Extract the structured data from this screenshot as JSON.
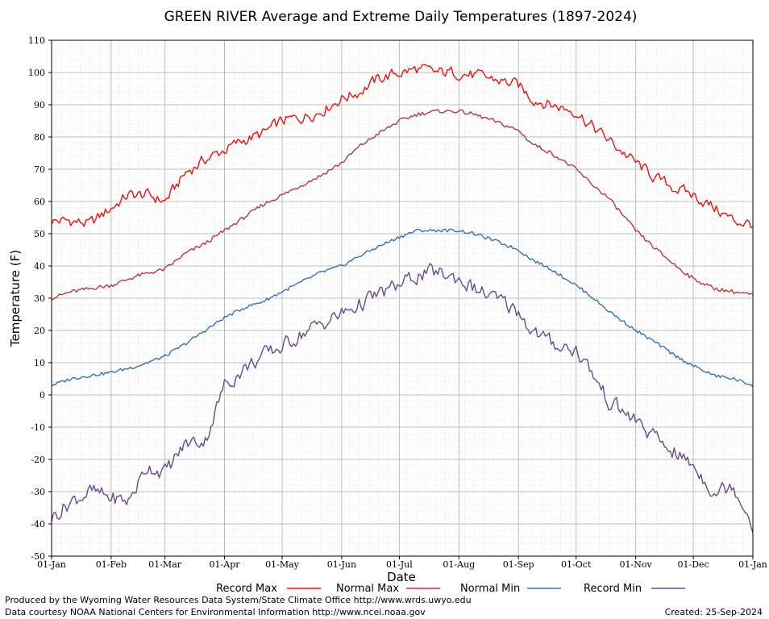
{
  "chart_data": {
    "type": "line",
    "title": "GREEN RIVER Average and Extreme Daily Temperatures (1897-2024)",
    "xlabel": "Date",
    "ylabel": "Temperature (F)",
    "ylim": [
      -50,
      110
    ],
    "yticks": [
      "-50",
      "-40",
      "-30",
      "-20",
      "-10",
      "0",
      "10",
      "20",
      "30",
      "40",
      "50",
      "60",
      "70",
      "80",
      "90",
      "100",
      "110"
    ],
    "xtick_labels": [
      "01-Jan",
      "01-Feb",
      "01-Mar",
      "01-Apr",
      "01-May",
      "01-Jun",
      "01-Jul",
      "01-Aug",
      "01-Sep",
      "01-Oct",
      "01-Nov",
      "01-Dec",
      "01-Jan"
    ],
    "xtick_days": [
      0,
      31,
      59,
      90,
      120,
      151,
      181,
      212,
      243,
      273,
      304,
      334,
      365
    ],
    "xlim": [
      0,
      365
    ],
    "grid": true,
    "legend_position": "bottom",
    "series": [
      {
        "name": "Record Max",
        "color": "#ee1111",
        "noise": 3,
        "keypoints": [
          [
            0,
            54
          ],
          [
            10,
            54
          ],
          [
            20,
            53
          ],
          [
            31,
            58
          ],
          [
            40,
            62
          ],
          [
            50,
            62
          ],
          [
            59,
            60
          ],
          [
            70,
            69
          ],
          [
            80,
            73
          ],
          [
            90,
            76
          ],
          [
            100,
            79
          ],
          [
            110,
            81
          ],
          [
            120,
            85
          ],
          [
            130,
            86
          ],
          [
            140,
            88
          ],
          [
            151,
            92
          ],
          [
            160,
            94
          ],
          [
            170,
            98
          ],
          [
            181,
            100
          ],
          [
            190,
            101
          ],
          [
            200,
            100
          ],
          [
            212,
            100
          ],
          [
            220,
            99
          ],
          [
            230,
            98
          ],
          [
            243,
            96
          ],
          [
            250,
            92
          ],
          [
            260,
            90
          ],
          [
            273,
            88
          ],
          [
            280,
            84
          ],
          [
            290,
            79
          ],
          [
            304,
            72
          ],
          [
            315,
            67
          ],
          [
            325,
            64
          ],
          [
            334,
            62
          ],
          [
            345,
            58
          ],
          [
            355,
            54
          ],
          [
            365,
            53
          ]
        ]
      },
      {
        "name": "Normal Max",
        "color": "#b33a3a",
        "noise": 0.6,
        "keypoints": [
          [
            0,
            30
          ],
          [
            10,
            32
          ],
          [
            20,
            33
          ],
          [
            31,
            34
          ],
          [
            45,
            37
          ],
          [
            59,
            39
          ],
          [
            70,
            44
          ],
          [
            80,
            47
          ],
          [
            90,
            51
          ],
          [
            100,
            55
          ],
          [
            110,
            59
          ],
          [
            120,
            62
          ],
          [
            130,
            65
          ],
          [
            140,
            68
          ],
          [
            151,
            72
          ],
          [
            160,
            77
          ],
          [
            170,
            81
          ],
          [
            181,
            85
          ],
          [
            190,
            87
          ],
          [
            200,
            88
          ],
          [
            212,
            88
          ],
          [
            220,
            87
          ],
          [
            230,
            85
          ],
          [
            243,
            82
          ],
          [
            250,
            78
          ],
          [
            260,
            75
          ],
          [
            273,
            70
          ],
          [
            280,
            66
          ],
          [
            290,
            61
          ],
          [
            304,
            51
          ],
          [
            315,
            45
          ],
          [
            325,
            40
          ],
          [
            334,
            36
          ],
          [
            345,
            33
          ],
          [
            355,
            32
          ],
          [
            365,
            31
          ]
        ]
      },
      {
        "name": "Normal Min",
        "color": "#3a70b0",
        "noise": 0.5,
        "keypoints": [
          [
            0,
            3
          ],
          [
            10,
            5
          ],
          [
            20,
            6
          ],
          [
            31,
            7
          ],
          [
            45,
            9
          ],
          [
            59,
            12
          ],
          [
            70,
            16
          ],
          [
            80,
            20
          ],
          [
            90,
            24
          ],
          [
            100,
            27
          ],
          [
            110,
            29
          ],
          [
            120,
            32
          ],
          [
            130,
            35
          ],
          [
            140,
            38
          ],
          [
            151,
            40
          ],
          [
            160,
            43
          ],
          [
            170,
            46
          ],
          [
            181,
            49
          ],
          [
            190,
            51
          ],
          [
            200,
            51
          ],
          [
            212,
            51
          ],
          [
            220,
            50
          ],
          [
            230,
            48
          ],
          [
            243,
            45
          ],
          [
            250,
            42
          ],
          [
            260,
            39
          ],
          [
            273,
            34
          ],
          [
            280,
            31
          ],
          [
            290,
            26
          ],
          [
            304,
            20
          ],
          [
            315,
            16
          ],
          [
            325,
            12
          ],
          [
            334,
            9
          ],
          [
            345,
            6
          ],
          [
            355,
            5
          ],
          [
            365,
            3
          ]
        ]
      },
      {
        "name": "Record Min",
        "color": "#6a4a8e",
        "noise": 4,
        "keypoints": [
          [
            0,
            -38
          ],
          [
            10,
            -33
          ],
          [
            20,
            -30
          ],
          [
            31,
            -32
          ],
          [
            40,
            -33
          ],
          [
            50,
            -22
          ],
          [
            59,
            -24
          ],
          [
            70,
            -15
          ],
          [
            80,
            -14
          ],
          [
            90,
            3
          ],
          [
            100,
            8
          ],
          [
            110,
            12
          ],
          [
            120,
            15
          ],
          [
            130,
            19
          ],
          [
            140,
            22
          ],
          [
            151,
            25
          ],
          [
            160,
            28
          ],
          [
            170,
            31
          ],
          [
            181,
            34
          ],
          [
            190,
            37
          ],
          [
            200,
            38
          ],
          [
            212,
            36
          ],
          [
            220,
            33
          ],
          [
            230,
            30
          ],
          [
            243,
            26
          ],
          [
            250,
            20
          ],
          [
            260,
            16
          ],
          [
            273,
            14
          ],
          [
            280,
            8
          ],
          [
            290,
            -2
          ],
          [
            304,
            -8
          ],
          [
            315,
            -14
          ],
          [
            325,
            -18
          ],
          [
            334,
            -22
          ],
          [
            345,
            -30
          ],
          [
            355,
            -28
          ],
          [
            365,
            -40
          ]
        ]
      }
    ]
  },
  "footer": {
    "line1": "Produced by the Wyoming Water Resources Data System/State Climate Office http://www.wrds.uwyo.edu",
    "line2": "Data courtesy NOAA National Centers for Environmental Information http://www.ncei.noaa.gov",
    "created": "Created: 25-Sep-2024"
  }
}
